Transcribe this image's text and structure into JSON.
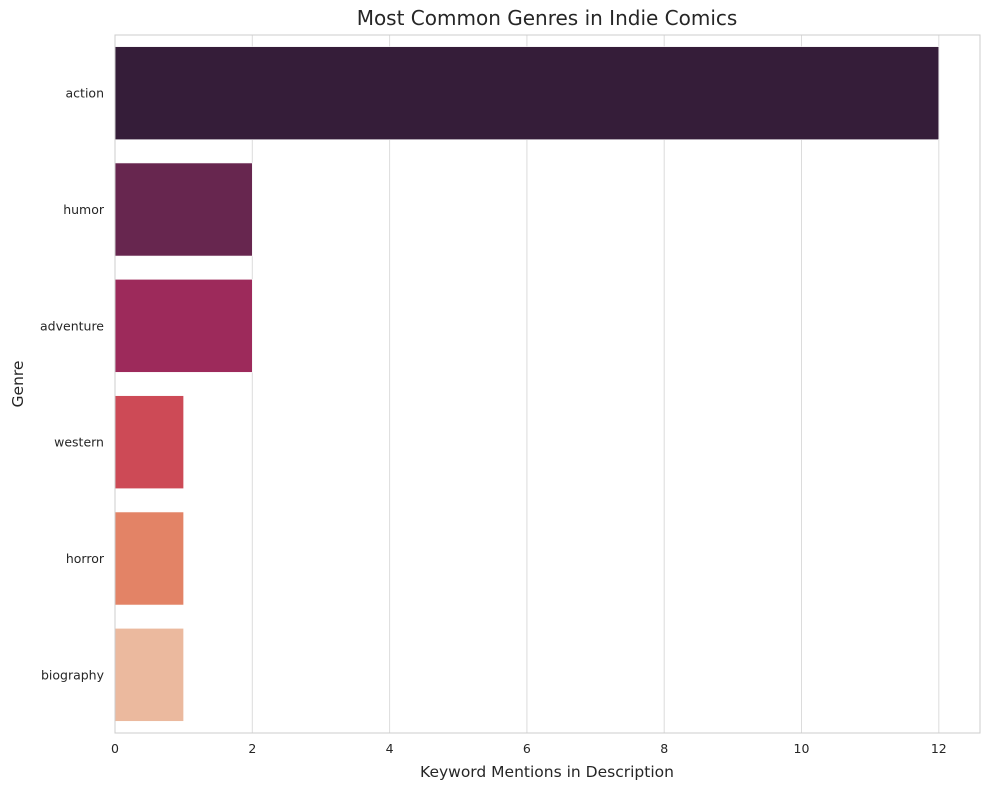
{
  "chart_data": {
    "type": "bar",
    "orientation": "horizontal",
    "title": "Most Common Genres in Indie Comics",
    "xlabel": "Keyword Mentions in Description",
    "ylabel": "Genre",
    "categories": [
      "action",
      "humor",
      "adventure",
      "western",
      "horror",
      "biography"
    ],
    "values": [
      12,
      2,
      2,
      1,
      1,
      1
    ],
    "colors": [
      "#351d39",
      "#67264f",
      "#9d2a5b",
      "#cd4a56",
      "#e38366",
      "#ebb99e"
    ],
    "xlim": [
      0,
      12.6
    ],
    "xticks": [
      0,
      2,
      4,
      6,
      8,
      10,
      12
    ],
    "grid": true,
    "grid_axis": "x",
    "legend": "none"
  }
}
